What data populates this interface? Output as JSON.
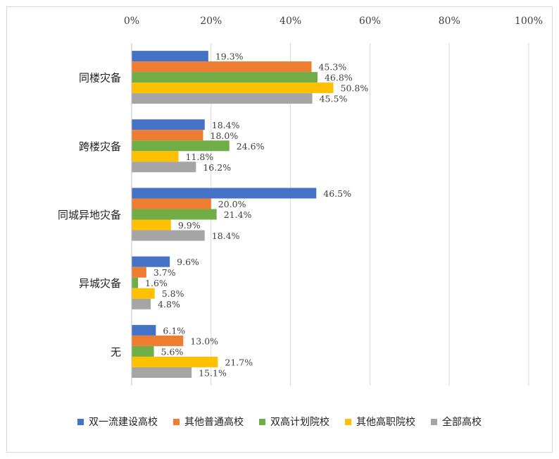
{
  "chart_data": {
    "type": "bar",
    "orientation": "horizontal",
    "categories": [
      "同楼灾备",
      "跨楼灾备",
      "同城异地灾备",
      "异城灾备",
      "无"
    ],
    "series": [
      {
        "name": "双一流建设高校",
        "color": "#4472c4",
        "values": [
          19.3,
          18.4,
          46.5,
          9.6,
          6.1
        ]
      },
      {
        "name": "其他普通高校",
        "color": "#ed7d31",
        "values": [
          45.3,
          18.0,
          20.0,
          3.7,
          13.0
        ]
      },
      {
        "name": "双高计划院校",
        "color": "#70ad47",
        "values": [
          46.8,
          24.6,
          21.4,
          1.6,
          5.6
        ]
      },
      {
        "name": "其他高职院校",
        "color": "#ffc000",
        "values": [
          50.8,
          11.8,
          9.9,
          5.8,
          21.7
        ]
      },
      {
        "name": "全部高校",
        "color": "#a5a5a5",
        "values": [
          45.5,
          16.2,
          18.4,
          4.8,
          15.1
        ]
      }
    ],
    "value_axis": {
      "min": 0,
      "max": 100,
      "step": 20,
      "tick_suffix": "%",
      "position": "top"
    },
    "data_label_suffix": "%",
    "grid": true,
    "legend_position": "bottom",
    "title": "",
    "xlabel": "",
    "ylabel": ""
  }
}
